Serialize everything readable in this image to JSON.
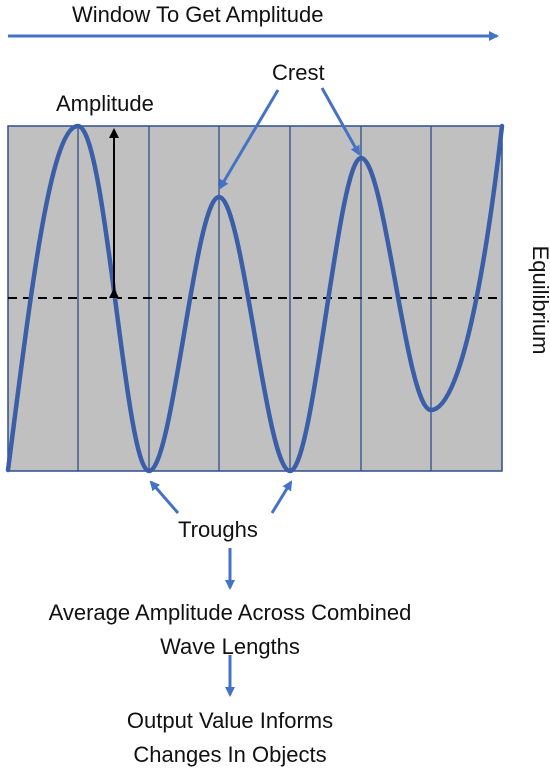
{
  "title": "Window To Get Amplitude",
  "labels": {
    "crest": "Crest",
    "amplitude": "Amplitude",
    "equilibrium": "Equilibrium",
    "troughs": "Troughs",
    "average_line1": "Average Amplitude Across Combined",
    "average_line2": "Wave Lengths",
    "output_line1": "Output Value Informs",
    "output_line2": "Changes In Objects"
  },
  "colors": {
    "wave": "#3b5ea8",
    "arrow": "#4472c4",
    "panel": "#c0c0c0",
    "grid": "#2f4f8f",
    "equilibrium": "#000000"
  }
}
